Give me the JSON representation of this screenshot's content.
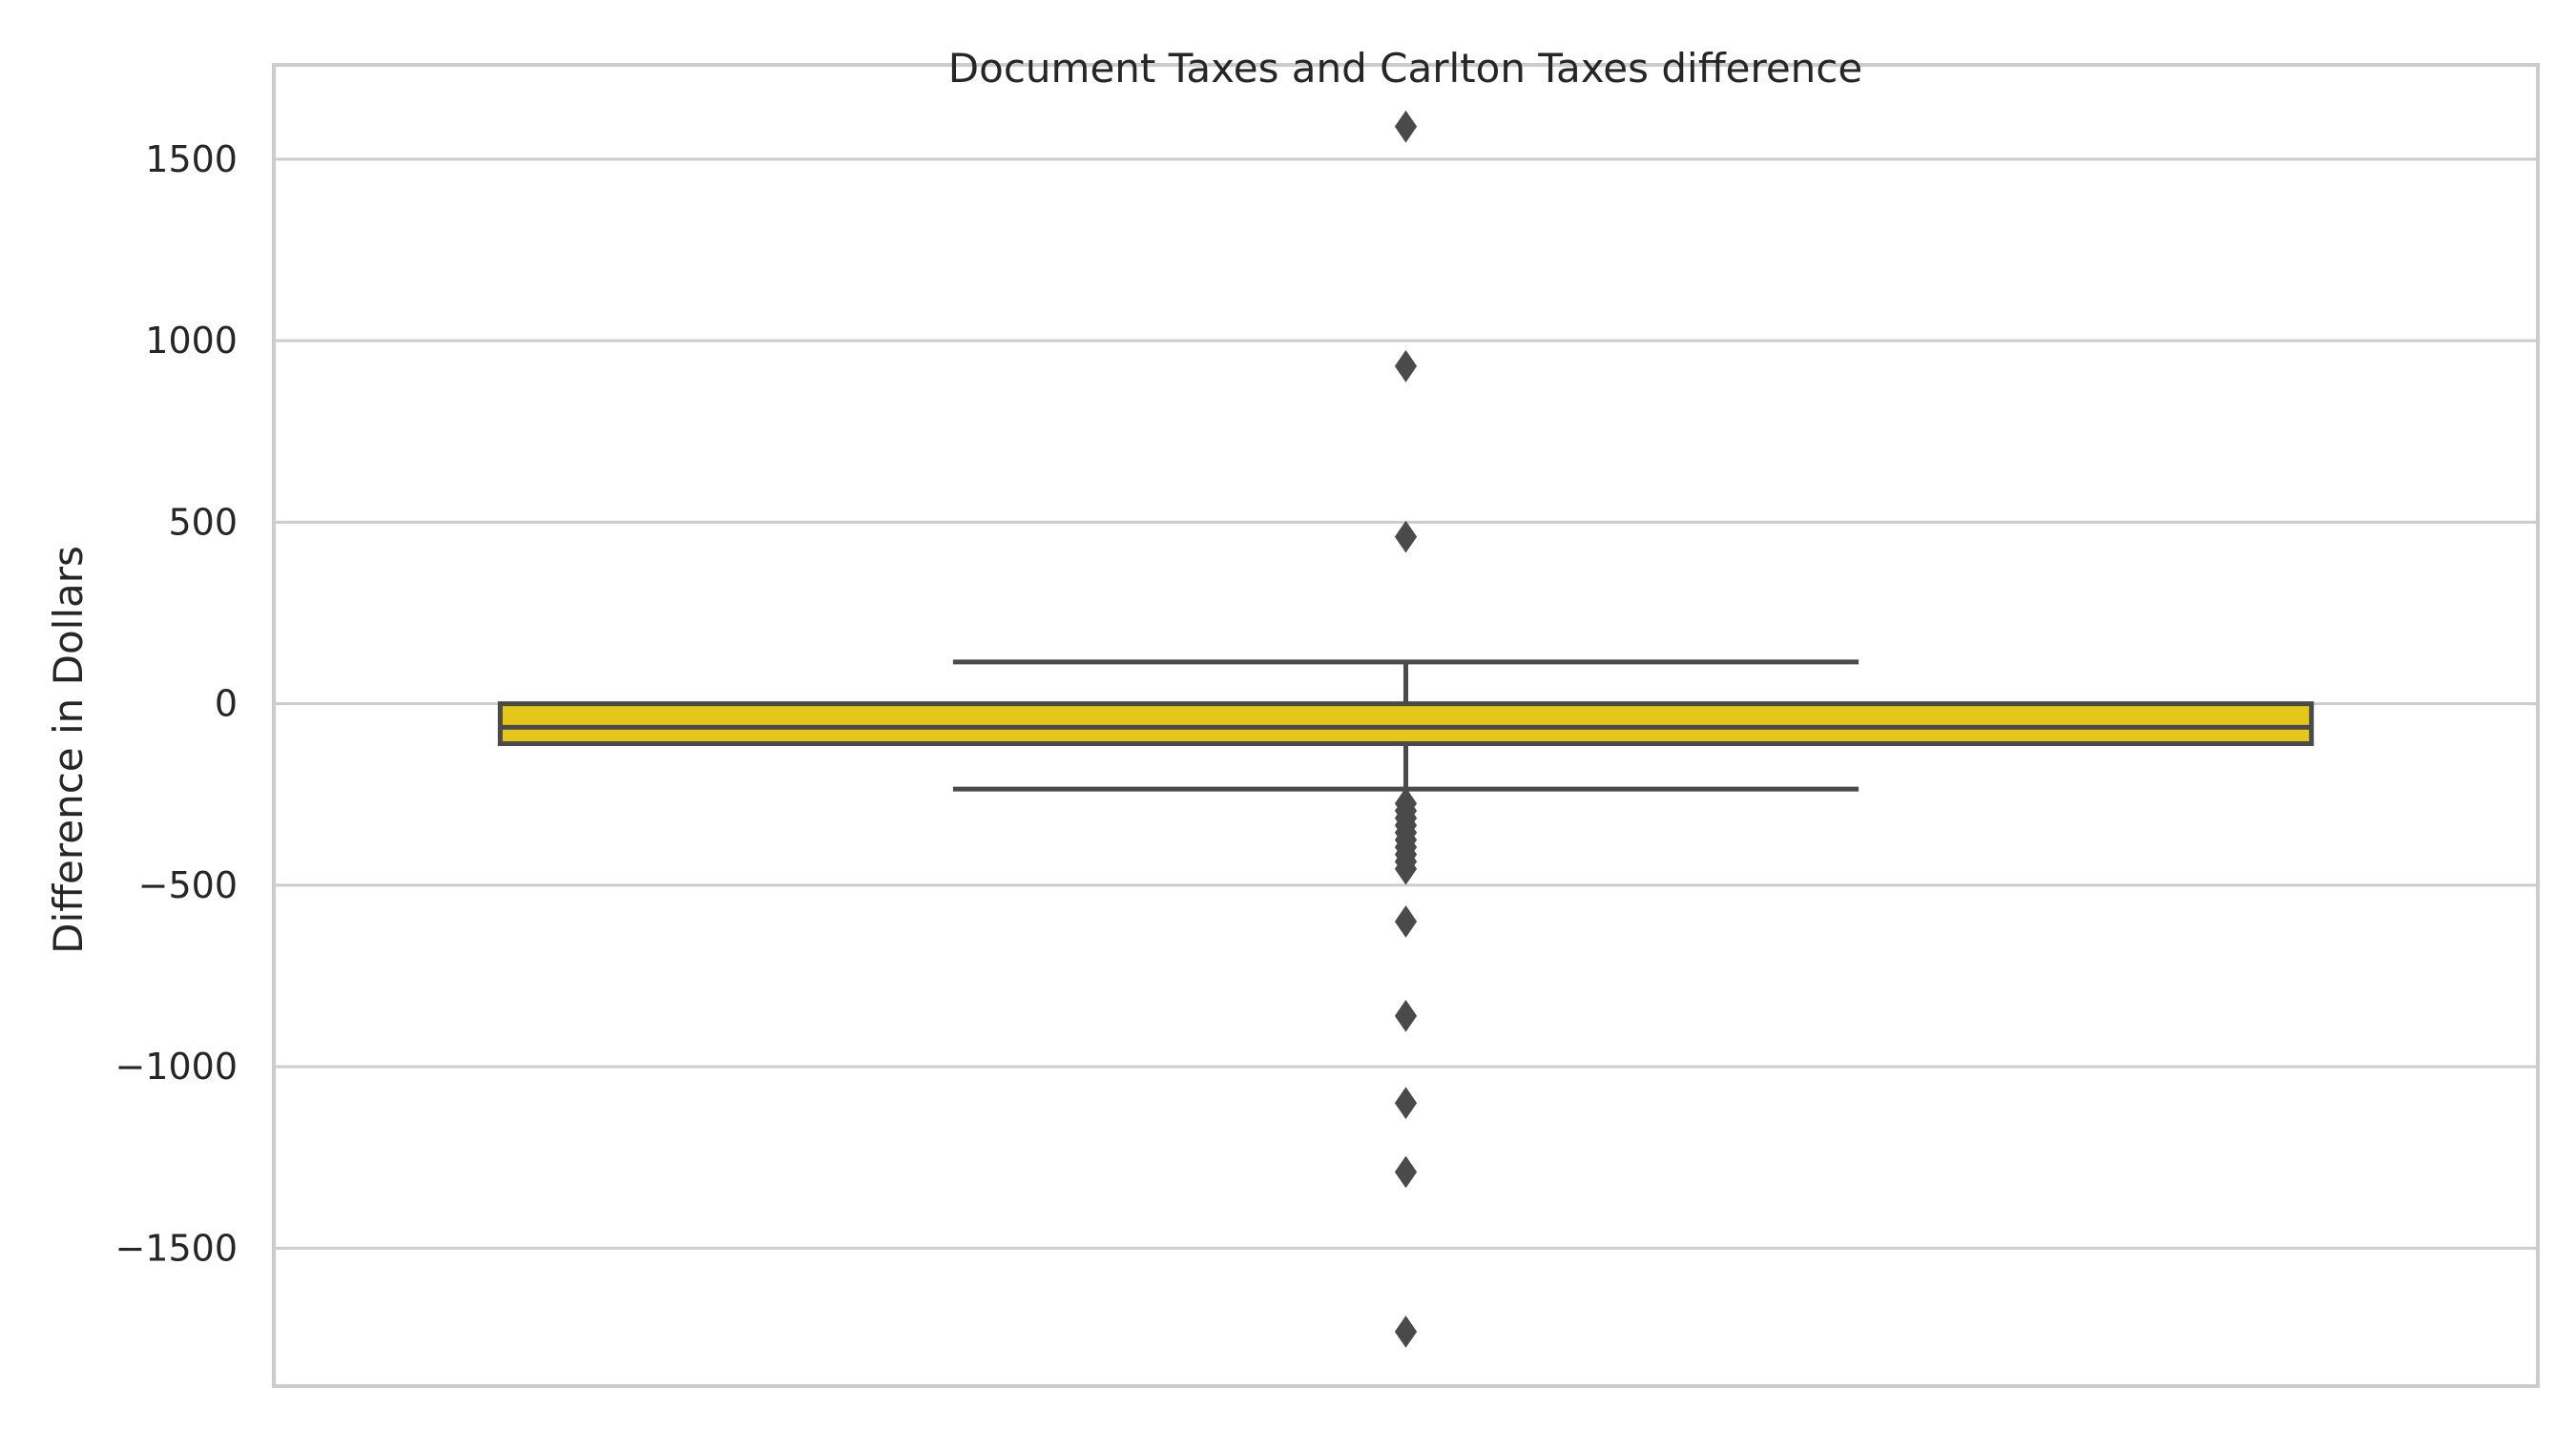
{
  "chart_data": {
    "type": "box",
    "title": "Document Taxes and Carlton Taxes difference",
    "xlabel": "",
    "ylabel": "Difference in Dollars",
    "ylim": [
      -1880,
      1760
    ],
    "yticks": [
      1500,
      1000,
      500,
      0,
      -500,
      -1000,
      -1500
    ],
    "ytick_labels": [
      "1500",
      "1000",
      "500",
      "0",
      "−500",
      "−1000",
      "−1500"
    ],
    "grid": true,
    "box": {
      "whisker_low": -235,
      "q1": -110,
      "median": -65,
      "q3": 0,
      "whisker_high": 115
    },
    "outliers": [
      1590,
      930,
      460,
      -275,
      -295,
      -315,
      -335,
      -355,
      -375,
      -395,
      -415,
      -435,
      -455,
      -600,
      -860,
      -1100,
      -1290,
      -1730
    ],
    "colors": {
      "box_fill": "#e6c619",
      "line": "#4a4a4a",
      "grid": "#cccccc",
      "frame": "#cccccc"
    }
  }
}
